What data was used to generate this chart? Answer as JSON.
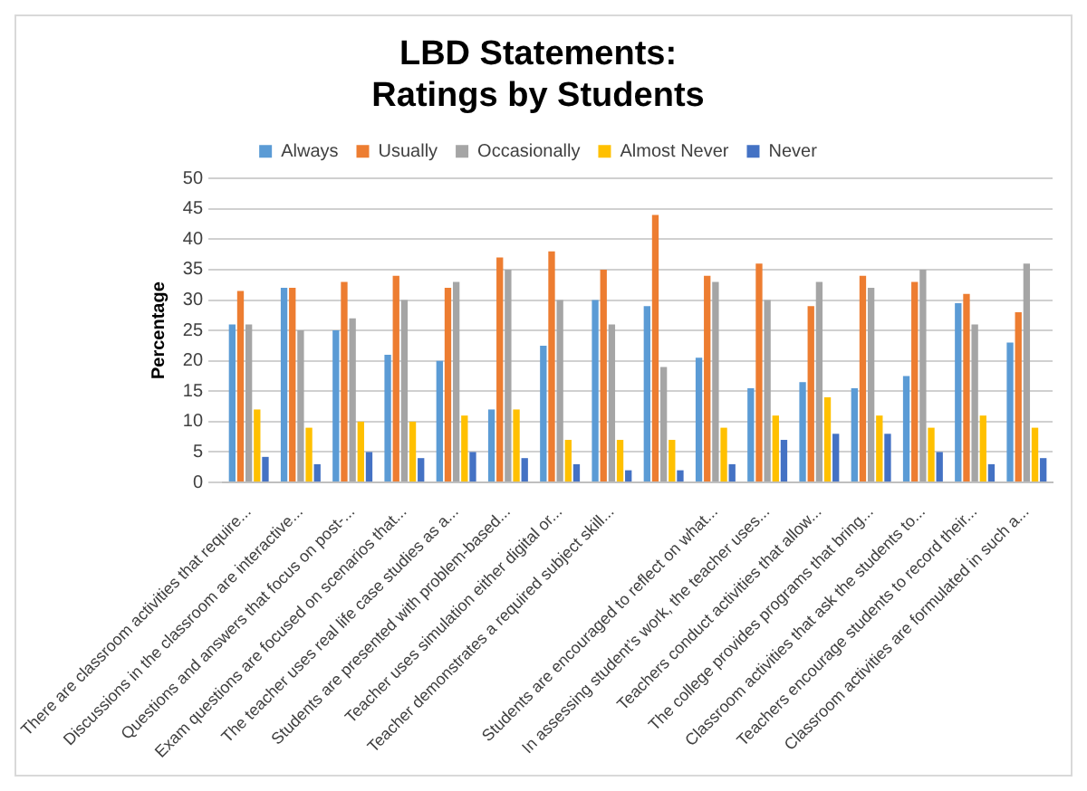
{
  "chart_data": {
    "type": "bar",
    "title": [
      "LBD Statements:",
      "Ratings by Students"
    ],
    "ylabel": "Percentage",
    "categories": [
      "There are classroom activities that require...",
      "Discussions in the classroom are interactive...",
      "Questions and answers that focus on post-...",
      "Exam questions are focused on scenarios that...",
      "The teacher uses real life case studies as a...",
      "Students are presented with problem-based...",
      "Teacher uses simulation either digital or...",
      "Teacher demonstrates a required subject skill...",
      null,
      "Students are encouraged to reflect on what...",
      "In assessing student’s work, the teacher uses...",
      "Teachers conduct activities that allow...",
      "The college provides programs that bring...",
      "Classroom activities that ask the students to...",
      "Teachers encourage students to record their...",
      "Classroom activities are formulated in such a..."
    ],
    "series": [
      {
        "name": "Always",
        "color": "#5b9bd5",
        "values": [
          26,
          32,
          25,
          21,
          20,
          12,
          22.5,
          30,
          29,
          20.5,
          15.5,
          16.5,
          15.5,
          17.5,
          29.5,
          23
        ]
      },
      {
        "name": "Usually",
        "color": "#ed7d31",
        "values": [
          31.5,
          32,
          33,
          34,
          32,
          37,
          38,
          35,
          44,
          34,
          36,
          29,
          34,
          33,
          31,
          28
        ]
      },
      {
        "name": "Occasionally",
        "color": "#a5a5a5",
        "values": [
          26,
          25,
          27,
          30,
          33,
          35,
          30,
          26,
          19,
          33,
          30,
          33,
          32,
          35,
          26,
          36
        ]
      },
      {
        "name": "Almost Never",
        "color": "#ffc000",
        "values": [
          12,
          9,
          10,
          10,
          11,
          12,
          7,
          7,
          7,
          9,
          11,
          14,
          11,
          9,
          11,
          9
        ]
      },
      {
        "name": "Never",
        "color": "#4472c4",
        "values": [
          4.2,
          3,
          5,
          4,
          5,
          4,
          3,
          2,
          2,
          3,
          7,
          8,
          8,
          5,
          3,
          4
        ]
      }
    ],
    "ylim": [
      0,
      50
    ],
    "yticks": [
      0,
      5,
      10,
      15,
      20,
      25,
      30,
      35,
      40,
      45,
      50
    ],
    "grid": "y",
    "legend": "top"
  }
}
